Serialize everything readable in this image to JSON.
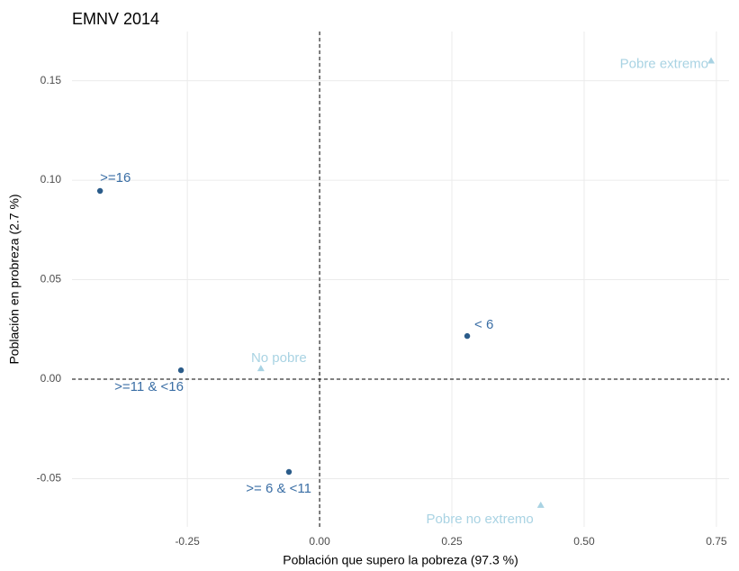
{
  "chart_data": {
    "type": "scatter",
    "title": "EMNV 2014",
    "x_label": "Población que supero la pobreza (97.3 %)",
    "y_label": "Población en probreza (2.7 %)",
    "xlim": [
      -0.468,
      0.774
    ],
    "ylim": [
      -0.0742,
      0.1747
    ],
    "xticks": [
      -0.25,
      {
        "value": 0,
        "label": "0.00"
      },
      0.25,
      {
        "value": 0.5,
        "label": "0.50"
      },
      0.75
    ],
    "yticks": [
      -0.05,
      {
        "value": 0,
        "label": "0.00"
      },
      0.05,
      {
        "value": 0.1,
        "label": "0.10"
      },
      0.15
    ],
    "grid": true,
    "hline": 0,
    "vline": 0,
    "series": [
      {
        "color": "#2b5c8a",
        "label_color": "#3a6ea5",
        "marker": "circle",
        "labels": [
          ">=16",
          ">=11 & <16",
          ">= 6 & <11",
          "< 6"
        ],
        "x": [
          -0.415,
          -0.262,
          -0.058,
          0.279
        ],
        "values": [
          0.0946,
          0.0045,
          -0.0466,
          0.0217
        ]
      },
      {
        "color": "#a9d3e3",
        "label_color": "#a9d3e3",
        "marker": "triangle",
        "labels": [
          "No pobre",
          "Pobre extremo",
          "Pobre no extremo"
        ],
        "x": [
          -0.111,
          0.74,
          0.418
        ],
        "values": [
          0.0054,
          0.16,
          -0.0633
        ]
      }
    ]
  }
}
